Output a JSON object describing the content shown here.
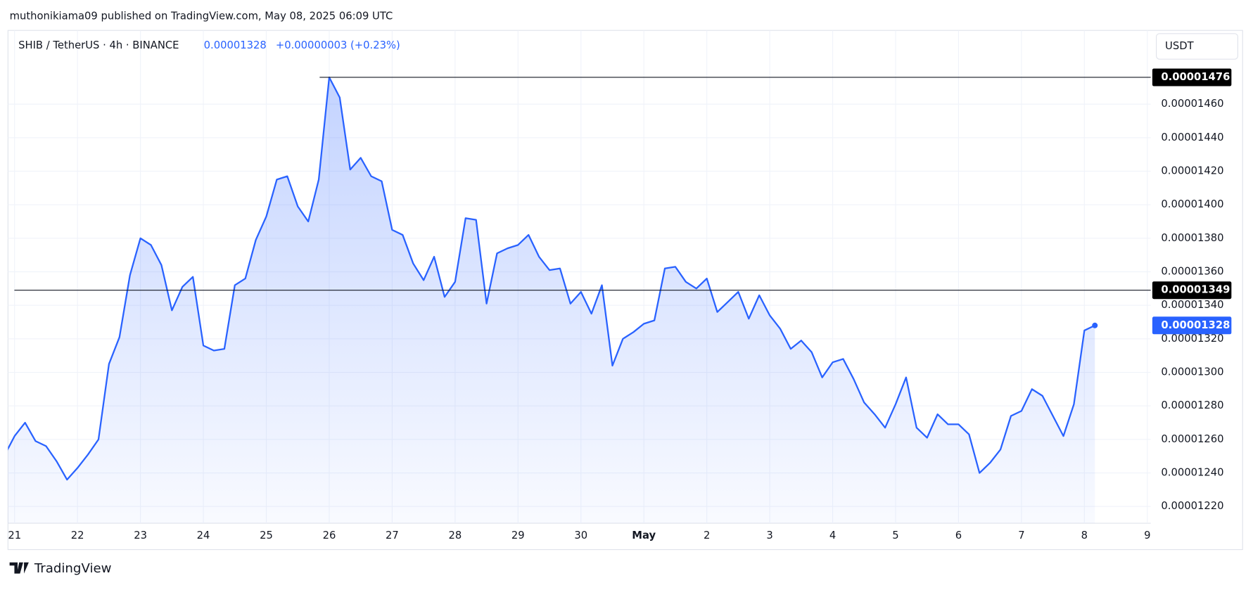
{
  "publisher_line": "muthonikiama09 published on TradingView.com, May 08, 2025 06:09 UTC",
  "brand": "TradingView",
  "chart_data": {
    "type": "area",
    "symbol": "SHIB / TetherUS · 4h · BINANCE",
    "last_price": "0.00001328",
    "change": "+0.00000003 (+0.23%)",
    "currency": "USDT",
    "color": "#2962ff",
    "grid": true,
    "xticks": [
      "21",
      "22",
      "23",
      "24",
      "25",
      "26",
      "27",
      "28",
      "29",
      "30",
      "May",
      "2",
      "3",
      "4",
      "5",
      "6",
      "7",
      "8",
      "9"
    ],
    "ylim": [
      1.21e-05,
      1.504e-05
    ],
    "yticks": [
      {
        "value": 1.22e-05,
        "label": "0.00001220"
      },
      {
        "value": 1.24e-05,
        "label": "0.00001240"
      },
      {
        "value": 1.26e-05,
        "label": "0.00001260"
      },
      {
        "value": 1.28e-05,
        "label": "0.00001280"
      },
      {
        "value": 1.3e-05,
        "label": "0.00001300"
      },
      {
        "value": 1.32e-05,
        "label": "0.00001320"
      },
      {
        "value": 1.34e-05,
        "label": "0.00001340"
      },
      {
        "value": 1.36e-05,
        "label": "0.00001360"
      },
      {
        "value": 1.38e-05,
        "label": "0.00001380"
      },
      {
        "value": 1.4e-05,
        "label": "0.00001400"
      },
      {
        "value": 1.42e-05,
        "label": "0.00001420"
      },
      {
        "value": 1.44e-05,
        "label": "0.00001440"
      },
      {
        "value": 1.46e-05,
        "label": "0.00001460"
      }
    ],
    "price_lines": [
      {
        "value": 1.476e-05,
        "label": "0.00001476"
      },
      {
        "value": 1.349e-05,
        "label": "0.00001349"
      }
    ],
    "last_marker": {
      "value": 1.328e-05,
      "label": "0.00001328"
    },
    "values": [
      1.25e-05,
      1.262e-05,
      1.27e-05,
      1.259e-05,
      1.256e-05,
      1.247e-05,
      1.236e-05,
      1.243e-05,
      1.251e-05,
      1.26e-05,
      1.305e-05,
      1.321e-05,
      1.358e-05,
      1.38e-05,
      1.376e-05,
      1.364e-05,
      1.337e-05,
      1.351e-05,
      1.357e-05,
      1.316e-05,
      1.313e-05,
      1.314e-05,
      1.352e-05,
      1.356e-05,
      1.379e-05,
      1.393e-05,
      1.415e-05,
      1.417e-05,
      1.399e-05,
      1.39e-05,
      1.415e-05,
      1.476e-05,
      1.464e-05,
      1.421e-05,
      1.428e-05,
      1.417e-05,
      1.414e-05,
      1.385e-05,
      1.382e-05,
      1.365e-05,
      1.355e-05,
      1.369e-05,
      1.345e-05,
      1.354e-05,
      1.392e-05,
      1.391e-05,
      1.341e-05,
      1.371e-05,
      1.374e-05,
      1.376e-05,
      1.382e-05,
      1.369e-05,
      1.361e-05,
      1.362e-05,
      1.341e-05,
      1.348e-05,
      1.335e-05,
      1.352e-05,
      1.304e-05,
      1.32e-05,
      1.324e-05,
      1.329e-05,
      1.331e-05,
      1.362e-05,
      1.363e-05,
      1.354e-05,
      1.35e-05,
      1.356e-05,
      1.336e-05,
      1.342e-05,
      1.348e-05,
      1.332e-05,
      1.346e-05,
      1.334e-05,
      1.326e-05,
      1.314e-05,
      1.319e-05,
      1.312e-05,
      1.297e-05,
      1.306e-05,
      1.308e-05,
      1.296e-05,
      1.282e-05,
      1.275e-05,
      1.267e-05,
      1.281e-05,
      1.297e-05,
      1.267e-05,
      1.261e-05,
      1.275e-05,
      1.269e-05,
      1.269e-05,
      1.263e-05,
      1.24e-05,
      1.246e-05,
      1.254e-05,
      1.274e-05,
      1.277e-05,
      1.29e-05,
      1.286e-05,
      1.274e-05,
      1.262e-05,
      1.281e-05,
      1.325e-05,
      1.328e-05
    ]
  }
}
